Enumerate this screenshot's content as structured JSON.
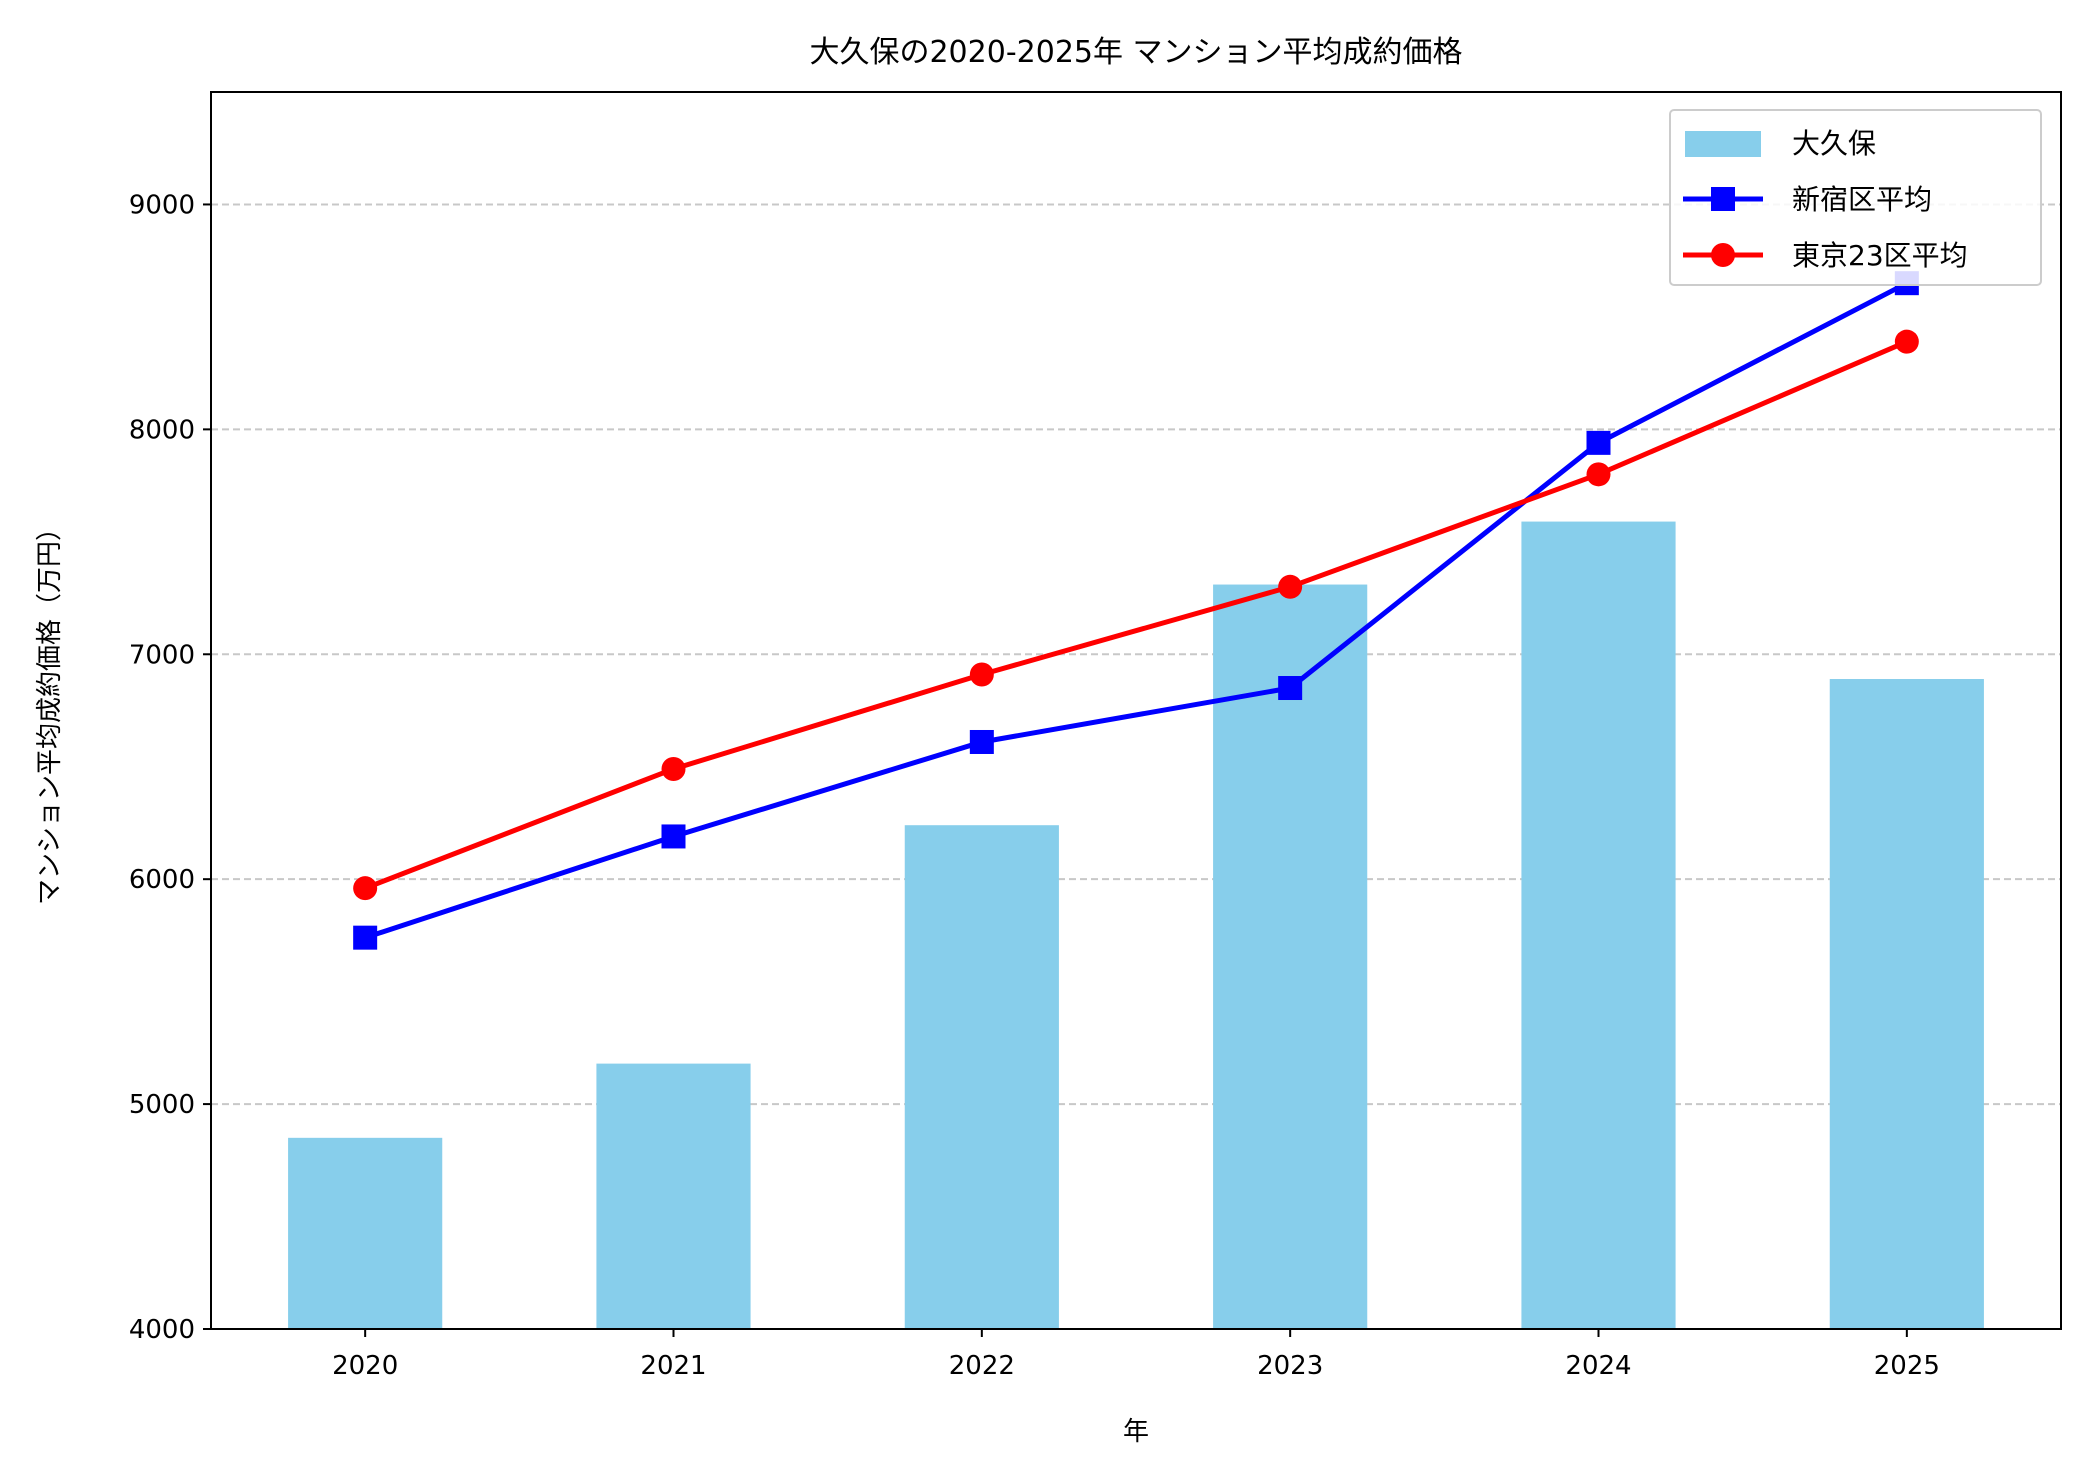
{
  "chart_data": {
    "type": "bar+line",
    "title": "大久保の2020-2025年 マンション平均成約価格",
    "xlabel": "年",
    "ylabel": "マンション平均成約価格（万円）",
    "categories": [
      "2020",
      "2021",
      "2022",
      "2023",
      "2024",
      "2025"
    ],
    "ylim": [
      4000,
      9500
    ],
    "yticks": [
      4000,
      5000,
      6000,
      7000,
      8000,
      9000
    ],
    "grid": "y-dashed",
    "legend_position": "top-right",
    "series": [
      {
        "name": "大久保",
        "kind": "bar",
        "color": "#87ceeb",
        "values": [
          4850,
          5180,
          6240,
          7310,
          7590,
          6890
        ]
      },
      {
        "name": "新宿区平均",
        "kind": "line",
        "marker": "square",
        "color": "#0000ff",
        "values": [
          5740,
          6190,
          6610,
          6850,
          7940,
          8650
        ]
      },
      {
        "name": "東京23区平均",
        "kind": "line",
        "marker": "circle",
        "color": "#ff0000",
        "values": [
          5960,
          6490,
          6910,
          7300,
          7800,
          8390
        ]
      }
    ]
  }
}
